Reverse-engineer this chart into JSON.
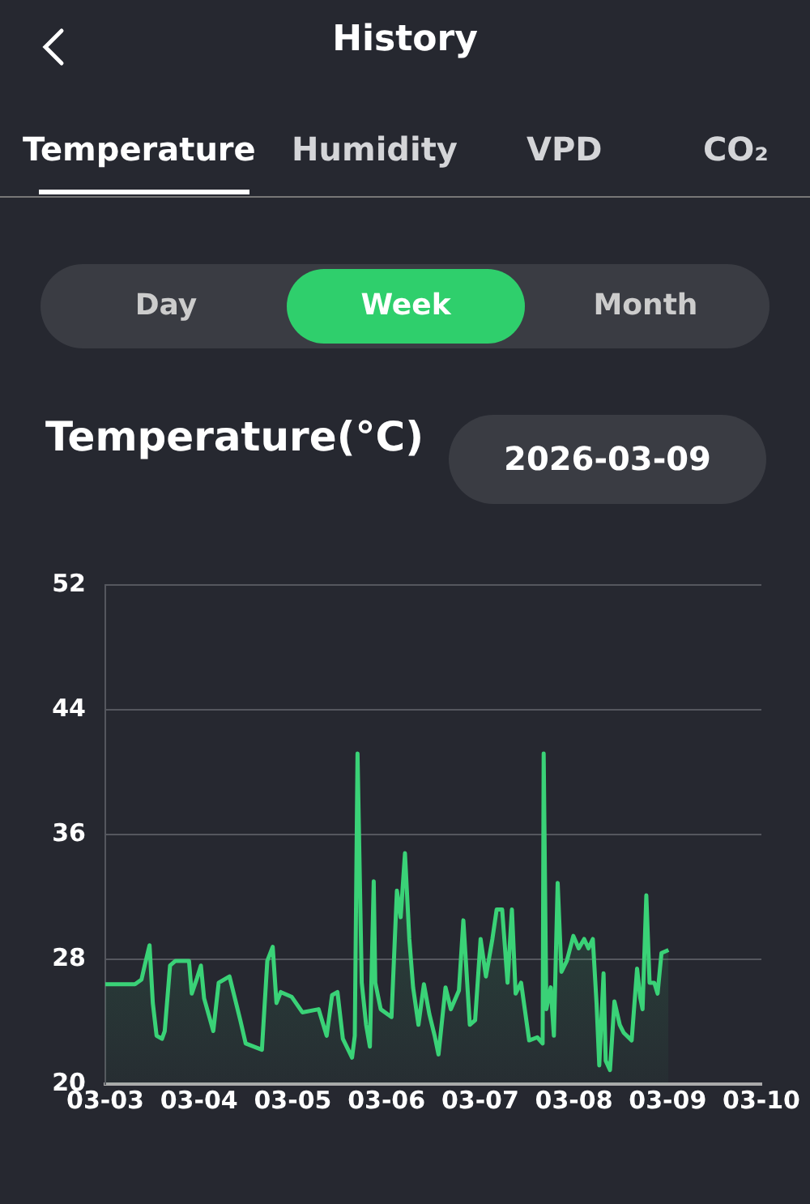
{
  "chart_data": {
    "type": "area",
    "title": "Temperature(°C)",
    "annotations": [
      "History",
      "Temperature",
      "Humidity",
      "VPD",
      "CO₂",
      "Day",
      "Week",
      "Month",
      "2026-03-09"
    ],
    "x": [
      "2026-03-03T00:00",
      "2026-03-03T07:36",
      "2026-03-03T09:16",
      "2026-03-03T10:05",
      "2026-03-03T11:20",
      "2026-03-03T12:10",
      "2026-03-03T13:08",
      "2026-03-03T14:31",
      "2026-03-03T15:13",
      "2026-03-03T16:35",
      "2026-03-03T17:58",
      "2026-03-03T21:26",
      "2026-03-03T22:08",
      "2026-03-03T23:30",
      "2026-03-04T00:29",
      "2026-03-04T01:18",
      "2026-03-04T03:39",
      "2026-03-04T05:02",
      "2026-03-04T07:48",
      "2026-03-04T09:11",
      "2026-03-04T10:34",
      "2026-03-04T11:57",
      "2026-03-04T16:06",
      "2026-03-04T17:29",
      "2026-03-04T18:52",
      "2026-03-04T19:50",
      "2026-03-04T20:56",
      "2026-03-04T23:42",
      "2026-03-05T02:28",
      "2026-03-05T06:37",
      "2026-03-05T08:41",
      "2026-03-05T10:04",
      "2026-03-05T11:27",
      "2026-03-05T12:50",
      "2026-03-05T15:11",
      "2026-03-05T15:53",
      "2026-03-05T16:35",
      "2026-03-05T17:40",
      "2026-03-05T18:47",
      "2026-03-05T19:45",
      "2026-03-05T20:44",
      "2026-03-05T21:08",
      "2026-03-05T22:31",
      "2026-03-06T01:17",
      "2026-03-06T02:40",
      "2026-03-06T03:38",
      "2026-03-06T04:44",
      "2026-03-06T05:51",
      "2026-03-06T06:49",
      "2026-03-06T08:11",
      "2026-03-06T09:35",
      "2026-03-06T10:58",
      "2026-03-06T12:20",
      "2026-03-06T13:19",
      "2026-03-06T15:07",
      "2026-03-06T16:29",
      "2026-03-06T18:33",
      "2026-03-06T19:41",
      "2026-03-06T21:20",
      "2026-03-06T22:42",
      "2026-03-07T00:06",
      "2026-03-07T01:28",
      "2026-03-07T03:07",
      "2026-03-07T04:13",
      "2026-03-07T05:37",
      "2026-03-07T07:00",
      "2026-03-07T08:07",
      "2026-03-07T09:04",
      "2026-03-07T10:28",
      "2026-03-07T12:32",
      "2026-03-07T14:37",
      "2026-03-07T15:59",
      "2026-03-07T16:15",
      "2026-03-07T16:56",
      "2026-03-07T18:03",
      "2026-03-07T18:52",
      "2026-03-07T19:50",
      "2026-03-07T20:48",
      "2026-03-07T22:11",
      "2026-03-07T23:51",
      "2026-03-08T01:13",
      "2026-03-08T02:37",
      "2026-03-08T03:43",
      "2026-03-08T04:50",
      "2026-03-08T05:47",
      "2026-03-08T06:29",
      "2026-03-08T07:35",
      "2026-03-08T08:08",
      "2026-03-08T09:14",
      "2026-03-08T10:22",
      "2026-03-08T11:44",
      "2026-03-08T12:43",
      "2026-03-08T14:47",
      "2026-03-08T16:10",
      "2026-03-08T17:00",
      "2026-03-08T17:34",
      "2026-03-08T18:32",
      "2026-03-08T19:22",
      "2026-03-08T20:34",
      "2026-03-08T21:25",
      "2026-03-08T22:25",
      "2026-03-09T00:13"
    ],
    "series": [
      {
        "color": "#3ad277",
        "values": [
          26.4,
          26.4,
          26.7,
          27.6,
          28.9,
          25.2,
          23.1,
          22.9,
          23.4,
          27.6,
          27.9,
          27.9,
          25.8,
          26.8,
          27.6,
          25.5,
          23.4,
          26.5,
          26.9,
          25.5,
          24.1,
          22.6,
          22.2,
          27.9,
          28.8,
          25.2,
          25.9,
          25.6,
          24.6,
          24.8,
          23.1,
          25.7,
          25.9,
          22.9,
          21.7,
          23.1,
          41.2,
          26.5,
          23.8,
          22.4,
          33.0,
          26.5,
          24.8,
          24.3,
          32.4,
          30.7,
          34.8,
          29.3,
          26.2,
          23.8,
          26.4,
          24.5,
          23.1,
          21.9,
          26.2,
          24.8,
          26.0,
          30.5,
          23.8,
          24.1,
          29.3,
          26.9,
          29.3,
          31.2,
          31.2,
          26.5,
          31.2,
          25.8,
          26.5,
          22.8,
          23.0,
          22.6,
          41.2,
          24.8,
          26.2,
          23.1,
          32.9,
          27.2,
          27.9,
          29.5,
          28.7,
          29.3,
          28.7,
          29.3,
          25.2,
          21.2,
          27.1,
          21.5,
          20.9,
          25.3,
          23.8,
          23.3,
          22.8,
          27.4,
          25.5,
          24.8,
          32.1,
          26.5,
          26.5,
          25.8,
          28.4,
          28.6
        ]
      }
    ],
    "xlim": [
      "2026-03-03",
      "2026-03-10"
    ],
    "xticks": [
      {
        "value": "2026-03-03",
        "label": "03-03"
      },
      {
        "value": "2026-03-04",
        "label": "03-04"
      },
      {
        "value": "2026-03-05",
        "label": "03-05"
      },
      {
        "value": "2026-03-06",
        "label": "03-06"
      },
      {
        "value": "2026-03-07",
        "label": "03-07"
      },
      {
        "value": "2026-03-08",
        "label": "03-08"
      },
      {
        "value": "2026-03-09",
        "label": "03-09"
      },
      {
        "value": "2026-03-10",
        "label": "03-10"
      }
    ],
    "ylim": [
      20,
      52
    ],
    "yticks": [
      20,
      28,
      36,
      44,
      52
    ],
    "grid": "y"
  }
}
